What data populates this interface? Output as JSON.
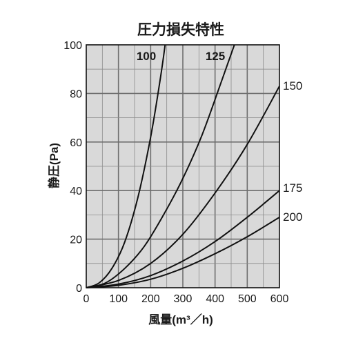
{
  "chart_data": {
    "type": "line",
    "title": "圧力損失特性",
    "xlabel": "風量(m³／h)",
    "ylabel": "静圧(Pa)",
    "xlim": [
      0,
      600
    ],
    "ylim": [
      0,
      100
    ],
    "x_ticks": [
      "0",
      "100",
      "200",
      "300",
      "400",
      "500",
      "600"
    ],
    "y_ticks": [
      "0",
      "20",
      "40",
      "60",
      "80",
      "100"
    ],
    "grid": true,
    "series": [
      {
        "name": "100",
        "x": [
          0,
          40,
          80,
          120,
          160,
          200,
          230,
          245
        ],
        "y": [
          0,
          2,
          8,
          19,
          37,
          62,
          86,
          100
        ]
      },
      {
        "name": "125",
        "x": [
          0,
          60,
          120,
          180,
          240,
          300,
          360,
          420,
          460
        ],
        "y": [
          0,
          2,
          8,
          17,
          30,
          45,
          63,
          85,
          100
        ]
      },
      {
        "name": "150",
        "x": [
          0,
          100,
          200,
          300,
          400,
          500,
          600
        ],
        "y": [
          0,
          3,
          10,
          22,
          39,
          59,
          83
        ]
      },
      {
        "name": "175",
        "x": [
          0,
          100,
          200,
          300,
          400,
          500,
          600
        ],
        "y": [
          0,
          1.5,
          5,
          11,
          19,
          29,
          40
        ]
      },
      {
        "name": "200",
        "x": [
          0,
          100,
          200,
          300,
          400,
          500,
          600
        ],
        "y": [
          0,
          1,
          3.5,
          8,
          14,
          21,
          29
        ]
      }
    ]
  }
}
